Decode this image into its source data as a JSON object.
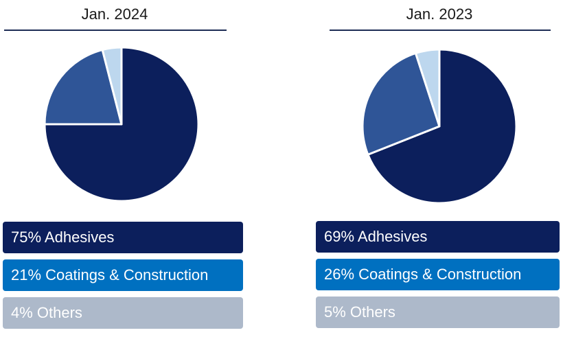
{
  "colors": {
    "adhesives": "#0c1f5c",
    "coatings_slice": "#2f5597",
    "coatings_box": "#0070c0",
    "others_slice": "#bdd7ee",
    "others_box": "#adb9ca"
  },
  "chart_data": [
    {
      "type": "pie",
      "title": "Jan. 2024",
      "categories": [
        "Adhesives",
        "Coatings & Construction",
        "Others"
      ],
      "values": [
        75,
        21,
        4
      ],
      "labels": [
        "75% Adhesives",
        "21% Coatings & Construction",
        "4% Others"
      ]
    },
    {
      "type": "pie",
      "title": "Jan. 2023",
      "categories": [
        "Adhesives",
        "Coatings & Construction",
        "Others"
      ],
      "values": [
        69,
        26,
        5
      ],
      "labels": [
        "69% Adhesives",
        "26% Coatings & Construction",
        "5% Others"
      ]
    }
  ]
}
